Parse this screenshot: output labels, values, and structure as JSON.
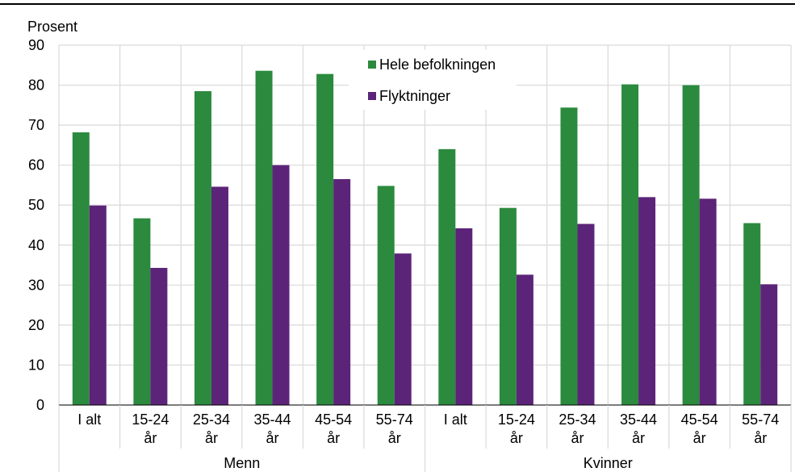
{
  "chart_data": {
    "type": "bar",
    "title": "",
    "ylabel": "Prosent",
    "xlabel": "",
    "ylim": [
      0,
      90
    ],
    "yticks": [
      0,
      10,
      20,
      30,
      40,
      50,
      60,
      70,
      80,
      90
    ],
    "grid": true,
    "legend_position": "top-center",
    "categories": [
      [
        "I alt"
      ],
      [
        "15-24",
        "år"
      ],
      [
        "25-34",
        "år"
      ],
      [
        "35-44",
        "år"
      ],
      [
        "45-54",
        "år"
      ],
      [
        "55-74",
        "år"
      ],
      [
        "I alt"
      ],
      [
        "15-24",
        "år"
      ],
      [
        "25-34",
        "år"
      ],
      [
        "35-44",
        "år"
      ],
      [
        "45-54",
        "år"
      ],
      [
        "55-74",
        "år"
      ]
    ],
    "groups": [
      {
        "label": "Menn",
        "start": 0,
        "count": 6
      },
      {
        "label": "Kvinner",
        "start": 6,
        "count": 6
      }
    ],
    "series": [
      {
        "name": "Hele befolkningen",
        "color": "#2b8a3e",
        "values": [
          68.2,
          46.7,
          78.5,
          83.6,
          82.8,
          54.8,
          64.0,
          49.3,
          74.4,
          80.2,
          80.0,
          45.5
        ]
      },
      {
        "name": "Flyktninger",
        "color": "#5c2478",
        "values": [
          49.9,
          34.3,
          54.6,
          60.0,
          56.5,
          37.9,
          44.2,
          32.6,
          45.3,
          52.0,
          51.6,
          30.2
        ]
      }
    ]
  }
}
